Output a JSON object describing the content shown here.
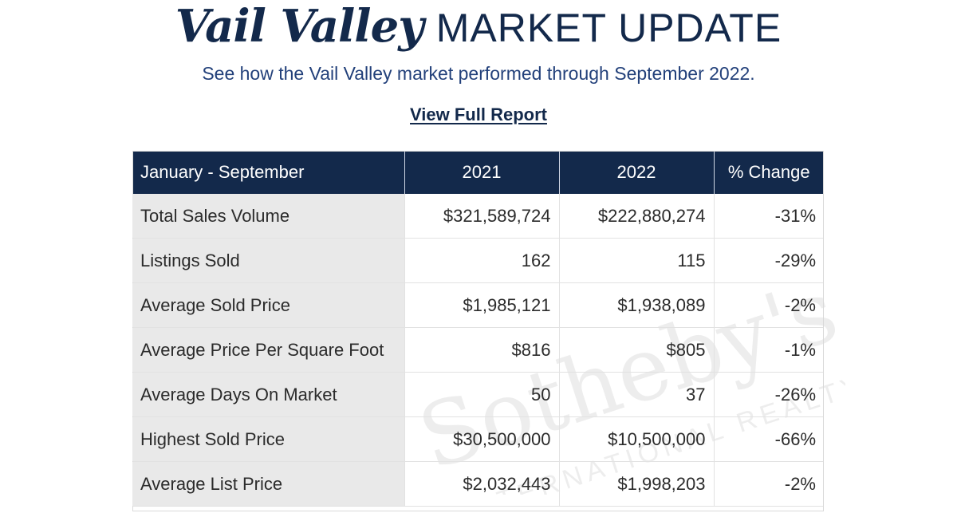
{
  "header": {
    "title_script": "Vail Valley",
    "title_caps": "MARKET UPDATE",
    "subtitle": "See how the Vail Valley market performed through September 2022.",
    "link_label": "View Full Report"
  },
  "table": {
    "columns": [
      "January - September",
      "2021",
      "2022",
      "% Change"
    ],
    "rows": [
      {
        "label": "Total Sales Volume",
        "y2021": "$321,589,724",
        "y2022": "$222,880,274",
        "change": "-31%"
      },
      {
        "label": "Listings Sold",
        "y2021": "162",
        "y2022": "115",
        "change": "-29%"
      },
      {
        "label": "Average Sold Price",
        "y2021": "$1,985,121",
        "y2022": "$1,938,089",
        "change": "-2%"
      },
      {
        "label": "Average Price Per Square Foot",
        "y2021": "$816",
        "y2022": "$805",
        "change": "-1%"
      },
      {
        "label": "Average Days On Market",
        "y2021": "50",
        "y2022": "37",
        "change": "-26%"
      },
      {
        "label": "Highest Sold Price",
        "y2021": "$30,500,000",
        "y2022": "$10,500,000",
        "change": "-66%"
      },
      {
        "label": "Average List Price",
        "y2021": "$2,032,443",
        "y2022": "$1,998,203",
        "change": "-2%"
      }
    ]
  },
  "watermark": {
    "brand": "Sotheby's",
    "tagline": "INTERNATIONAL REALTY"
  },
  "colors": {
    "navy": "#13294b",
    "label_bg": "#e9e9e9"
  }
}
